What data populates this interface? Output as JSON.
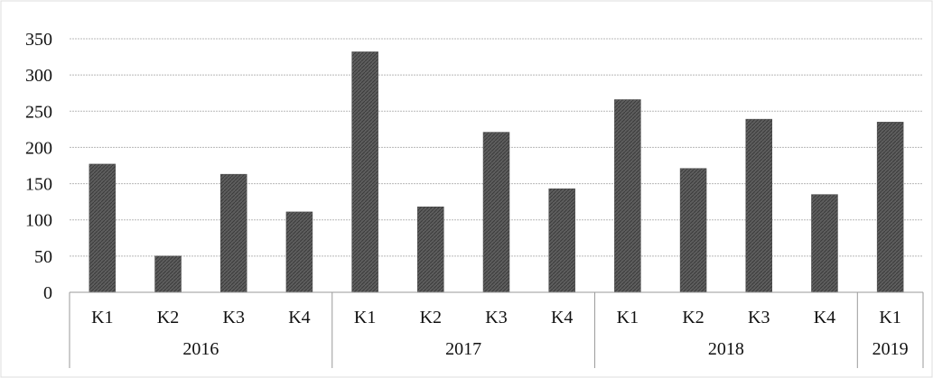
{
  "chart_data": {
    "type": "bar",
    "title": "",
    "xlabel": "",
    "ylabel": "",
    "ylim": [
      0,
      350
    ],
    "yticks": [
      0,
      50,
      100,
      150,
      200,
      250,
      300,
      350
    ],
    "grid": true,
    "legend": "none",
    "categories": [
      "K1",
      "K2",
      "K3",
      "K4",
      "K1",
      "K2",
      "K3",
      "K4",
      "K1",
      "K2",
      "K3",
      "K4",
      "K1"
    ],
    "groups": [
      {
        "label": "2016",
        "count": 4
      },
      {
        "label": "2017",
        "count": 4
      },
      {
        "label": "2018",
        "count": 4
      },
      {
        "label": "2019",
        "count": 1
      }
    ],
    "series": [
      {
        "values": [
          177,
          50,
          163,
          111,
          332,
          118,
          221,
          143,
          266,
          171,
          239,
          135,
          235
        ]
      }
    ],
    "colors": {
      "bar": "#5e5e5e",
      "grid": "#b8b8b8",
      "axis": "#9a9a9a"
    }
  }
}
